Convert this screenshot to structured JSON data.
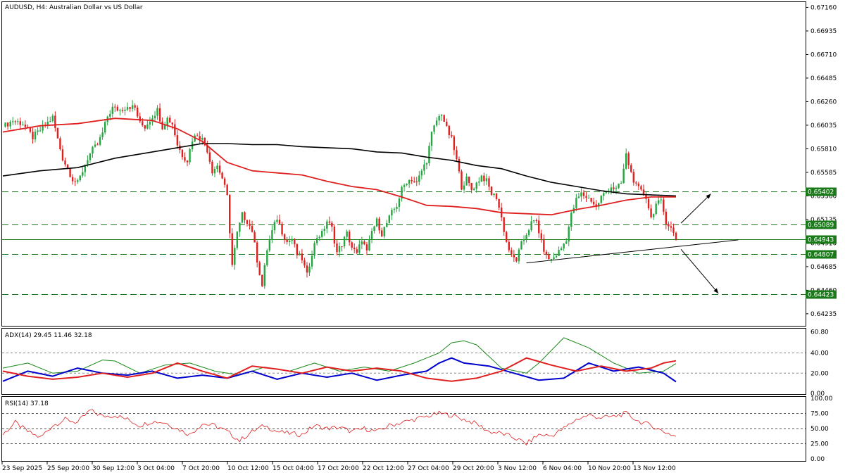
{
  "header": {
    "title": "AUDUSD, H4:  Australian Dollar vs US Dollar"
  },
  "colors": {
    "bull": "#26a641",
    "bear": "#e0201f",
    "ma_fast": "#e0201f",
    "ma_slow": "#000000",
    "level_line": "#1a7a1a",
    "adx_main": "#1a8a1a",
    "adx_plus": "#0000cc",
    "adx_minus": "#e0201f",
    "rsi": "#e0201f"
  },
  "price_axis": {
    "labels": [
      "0.67160",
      "0.66935",
      "0.66710",
      "0.66485",
      "0.66260",
      "0.66035",
      "0.65810",
      "0.65585",
      "0.65360",
      "0.65135",
      "0.64910",
      "0.64685",
      "0.64460",
      "0.64235"
    ]
  },
  "price_levels": [
    {
      "value": 0.65402,
      "label": "0.65402",
      "style": "dashed"
    },
    {
      "value": 0.65089,
      "label": "0.65089",
      "style": "dashed"
    },
    {
      "value": 0.64943,
      "label": "0.64943",
      "style": "solid"
    },
    {
      "value": 0.64807,
      "label": "0.64807",
      "style": "dashed"
    },
    {
      "value": 0.64423,
      "label": "0.64423",
      "style": "dashed"
    }
  ],
  "time_axis": {
    "labels": [
      "23 Sep 2025",
      "25 Sep 20:00",
      "30 Sep 12:00",
      "3 Oct 04:00",
      "7 Oct 20:00",
      "10 Oct 12:00",
      "15 Oct 04:00",
      "17 Oct 20:00",
      "22 Oct 12:00",
      "27 Oct 04:00",
      "29 Oct 20:00",
      "3 Nov 12:00",
      "6 Nov 04:00",
      "10 Nov 20:00",
      "13 Nov 12:00"
    ]
  },
  "adx_panel": {
    "label": "ADX(14) 29.45 11.46 32.18",
    "axis_labels": [
      "60.80",
      "40.00",
      "20.00",
      "0.00"
    ]
  },
  "rsi_panel": {
    "label": "RSI(14) 37.18",
    "axis_labels": [
      "100.00",
      "75.00",
      "50.00",
      "25.00",
      "0.00"
    ]
  },
  "chart_data": {
    "type": "candlestick",
    "symbol": "AUDUSD",
    "timeframe": "H4",
    "ylim": [
      0.6412,
      0.6721
    ],
    "anchors": [
      [
        0,
        0.6602
      ],
      [
        4,
        0.6608
      ],
      [
        8,
        0.6605
      ],
      [
        12,
        0.6592
      ],
      [
        16,
        0.6601
      ],
      [
        20,
        0.6611
      ],
      [
        22,
        0.659
      ],
      [
        24,
        0.6572
      ],
      [
        26,
        0.6562
      ],
      [
        28,
        0.6552
      ],
      [
        30,
        0.6548
      ],
      [
        32,
        0.656
      ],
      [
        34,
        0.6572
      ],
      [
        36,
        0.658
      ],
      [
        38,
        0.6585
      ],
      [
        40,
        0.6596
      ],
      [
        42,
        0.6612
      ],
      [
        44,
        0.662
      ],
      [
        47,
        0.6618
      ],
      [
        50,
        0.6622
      ],
      [
        53,
        0.662
      ],
      [
        55,
        0.6605
      ],
      [
        57,
        0.6602
      ],
      [
        60,
        0.6612
      ],
      [
        62,
        0.6618
      ],
      [
        64,
        0.6602
      ],
      [
        66,
        0.661
      ],
      [
        68,
        0.6605
      ],
      [
        70,
        0.6585
      ],
      [
        72,
        0.6575
      ],
      [
        74,
        0.657
      ],
      [
        76,
        0.659
      ],
      [
        78,
        0.6595
      ],
      [
        80,
        0.659
      ],
      [
        82,
        0.658
      ],
      [
        84,
        0.656
      ],
      [
        86,
        0.6565
      ],
      [
        88,
        0.6553
      ],
      [
        90,
        0.6535
      ],
      [
        92,
        0.647
      ],
      [
        94,
        0.65
      ],
      [
        96,
        0.6518
      ],
      [
        98,
        0.6512
      ],
      [
        100,
        0.6503
      ],
      [
        102,
        0.6475
      ],
      [
        104,
        0.645
      ],
      [
        106,
        0.6485
      ],
      [
        108,
        0.6502
      ],
      [
        110,
        0.6515
      ],
      [
        112,
        0.6502
      ],
      [
        114,
        0.6492
      ],
      [
        116,
        0.6495
      ],
      [
        118,
        0.648
      ],
      [
        120,
        0.6476
      ],
      [
        122,
        0.646
      ],
      [
        124,
        0.6482
      ],
      [
        126,
        0.6497
      ],
      [
        128,
        0.65
      ],
      [
        130,
        0.6512
      ],
      [
        132,
        0.6505
      ],
      [
        134,
        0.6482
      ],
      [
        136,
        0.649
      ],
      [
        138,
        0.65
      ],
      [
        140,
        0.6487
      ],
      [
        142,
        0.648
      ],
      [
        144,
        0.6495
      ],
      [
        146,
        0.6482
      ],
      [
        148,
        0.6502
      ],
      [
        150,
        0.6512
      ],
      [
        152,
        0.65
      ],
      [
        154,
        0.651
      ],
      [
        156,
        0.652
      ],
      [
        158,
        0.6527
      ],
      [
        160,
        0.6542
      ],
      [
        162,
        0.655
      ],
      [
        164,
        0.6552
      ],
      [
        166,
        0.6548
      ],
      [
        168,
        0.656
      ],
      [
        170,
        0.657
      ],
      [
        172,
        0.6595
      ],
      [
        174,
        0.6608
      ],
      [
        176,
        0.6615
      ],
      [
        178,
        0.66
      ],
      [
        180,
        0.659
      ],
      [
        182,
        0.657
      ],
      [
        184,
        0.6545
      ],
      [
        186,
        0.6552
      ],
      [
        188,
        0.6542
      ],
      [
        190,
        0.6548
      ],
      [
        192,
        0.6555
      ],
      [
        194,
        0.655
      ],
      [
        196,
        0.6538
      ],
      [
        198,
        0.6535
      ],
      [
        200,
        0.6515
      ],
      [
        202,
        0.6492
      ],
      [
        204,
        0.6478
      ],
      [
        206,
        0.6475
      ],
      [
        208,
        0.649
      ],
      [
        210,
        0.65
      ],
      [
        212,
        0.651
      ],
      [
        214,
        0.6512
      ],
      [
        216,
        0.6492
      ],
      [
        218,
        0.6478
      ],
      [
        220,
        0.6475
      ],
      [
        222,
        0.648
      ],
      [
        224,
        0.6486
      ],
      [
        226,
        0.6495
      ],
      [
        228,
        0.6518
      ],
      [
        230,
        0.6532
      ],
      [
        232,
        0.6538
      ],
      [
        234,
        0.6535
      ],
      [
        236,
        0.6532
      ],
      [
        238,
        0.6525
      ],
      [
        240,
        0.6535
      ],
      [
        242,
        0.654
      ],
      [
        244,
        0.6545
      ],
      [
        246,
        0.6542
      ],
      [
        248,
        0.6548
      ],
      [
        250,
        0.6575
      ],
      [
        252,
        0.6558
      ],
      [
        254,
        0.6545
      ],
      [
        256,
        0.654
      ],
      [
        258,
        0.6535
      ],
      [
        260,
        0.6515
      ],
      [
        262,
        0.6528
      ],
      [
        264,
        0.653
      ],
      [
        266,
        0.6512
      ],
      [
        268,
        0.6505
      ],
      [
        270,
        0.6495
      ]
    ],
    "ma_fast": [
      [
        0,
        0.6597
      ],
      [
        15,
        0.6603
      ],
      [
        30,
        0.6605
      ],
      [
        45,
        0.661
      ],
      [
        60,
        0.6608
      ],
      [
        70,
        0.66
      ],
      [
        80,
        0.6588
      ],
      [
        90,
        0.6568
      ],
      [
        100,
        0.656
      ],
      [
        110,
        0.6558
      ],
      [
        120,
        0.6556
      ],
      [
        130,
        0.655
      ],
      [
        140,
        0.6545
      ],
      [
        150,
        0.6542
      ],
      [
        160,
        0.6535
      ],
      [
        170,
        0.6527
      ],
      [
        180,
        0.6526
      ],
      [
        190,
        0.6524
      ],
      [
        200,
        0.652
      ],
      [
        210,
        0.6519
      ],
      [
        220,
        0.6518
      ],
      [
        230,
        0.6523
      ],
      [
        240,
        0.6527
      ],
      [
        250,
        0.6532
      ],
      [
        260,
        0.6535
      ],
      [
        270,
        0.6535
      ]
    ],
    "ma_slow": [
      [
        0,
        0.6555
      ],
      [
        15,
        0.656
      ],
      [
        30,
        0.6563
      ],
      [
        45,
        0.6572
      ],
      [
        60,
        0.6578
      ],
      [
        70,
        0.6582
      ],
      [
        80,
        0.6586
      ],
      [
        90,
        0.6586
      ],
      [
        100,
        0.6585
      ],
      [
        110,
        0.6585
      ],
      [
        120,
        0.6583
      ],
      [
        130,
        0.6582
      ],
      [
        140,
        0.6581
      ],
      [
        150,
        0.6578
      ],
      [
        160,
        0.6577
      ],
      [
        170,
        0.6573
      ],
      [
        180,
        0.657
      ],
      [
        190,
        0.6565
      ],
      [
        200,
        0.6562
      ],
      [
        210,
        0.6555
      ],
      [
        220,
        0.6549
      ],
      [
        230,
        0.6545
      ],
      [
        240,
        0.6541
      ],
      [
        250,
        0.6538
      ],
      [
        260,
        0.6537
      ],
      [
        270,
        0.6536
      ]
    ],
    "trendline": {
      "from": [
        210,
        0.6472
      ],
      "to": [
        295,
        0.6494
      ]
    },
    "arrows": [
      {
        "from": [
          272,
          0.651
        ],
        "to": [
          284,
          0.6538
        ]
      },
      {
        "from": [
          272,
          0.6485
        ],
        "to": [
          287,
          0.6443
        ]
      }
    ],
    "adx": {
      "ylim": [
        0,
        64
      ],
      "adx": [
        [
          0,
          25
        ],
        [
          10,
          30
        ],
        [
          20,
          20
        ],
        [
          30,
          22
        ],
        [
          40,
          33
        ],
        [
          45,
          32
        ],
        [
          55,
          20
        ],
        [
          65,
          28
        ],
        [
          75,
          30
        ],
        [
          85,
          22
        ],
        [
          95,
          18
        ],
        [
          105,
          26
        ],
        [
          115,
          22
        ],
        [
          125,
          30
        ],
        [
          135,
          22
        ],
        [
          145,
          26
        ],
        [
          155,
          22
        ],
        [
          165,
          30
        ],
        [
          175,
          40
        ],
        [
          180,
          50
        ],
        [
          185,
          52
        ],
        [
          190,
          48
        ],
        [
          200,
          25
        ],
        [
          210,
          20
        ],
        [
          215,
          30
        ],
        [
          225,
          55
        ],
        [
          235,
          45
        ],
        [
          245,
          30
        ],
        [
          255,
          20
        ],
        [
          265,
          22
        ],
        [
          270,
          29.45
        ]
      ],
      "plus": [
        [
          0,
          12
        ],
        [
          10,
          22
        ],
        [
          20,
          17
        ],
        [
          30,
          25
        ],
        [
          40,
          20
        ],
        [
          50,
          18
        ],
        [
          60,
          22
        ],
        [
          70,
          15
        ],
        [
          80,
          18
        ],
        [
          90,
          15
        ],
        [
          100,
          22
        ],
        [
          110,
          14
        ],
        [
          120,
          20
        ],
        [
          130,
          16
        ],
        [
          140,
          20
        ],
        [
          150,
          13
        ],
        [
          160,
          18
        ],
        [
          170,
          22
        ],
        [
          175,
          30
        ],
        [
          180,
          35
        ],
        [
          185,
          30
        ],
        [
          195,
          27
        ],
        [
          205,
          20
        ],
        [
          215,
          13
        ],
        [
          225,
          15
        ],
        [
          235,
          30
        ],
        [
          245,
          22
        ],
        [
          255,
          26
        ],
        [
          265,
          20
        ],
        [
          270,
          11.46
        ]
      ],
      "minus": [
        [
          0,
          22
        ],
        [
          10,
          17
        ],
        [
          20,
          14
        ],
        [
          30,
          16
        ],
        [
          40,
          20
        ],
        [
          50,
          16
        ],
        [
          60,
          20
        ],
        [
          70,
          30
        ],
        [
          80,
          22
        ],
        [
          90,
          15
        ],
        [
          100,
          27
        ],
        [
          110,
          24
        ],
        [
          120,
          20
        ],
        [
          130,
          26
        ],
        [
          140,
          22
        ],
        [
          150,
          25
        ],
        [
          160,
          22
        ],
        [
          170,
          15
        ],
        [
          180,
          12
        ],
        [
          190,
          15
        ],
        [
          200,
          22
        ],
        [
          210,
          35
        ],
        [
          220,
          28
        ],
        [
          230,
          22
        ],
        [
          240,
          27
        ],
        [
          250,
          22
        ],
        [
          260,
          25
        ],
        [
          265,
          30
        ],
        [
          270,
          32.18
        ]
      ]
    },
    "rsi": {
      "ylim": [
        0,
        100
      ],
      "series": [
        [
          0,
          40
        ],
        [
          5,
          60
        ],
        [
          10,
          45
        ],
        [
          15,
          35
        ],
        [
          20,
          55
        ],
        [
          25,
          65
        ],
        [
          30,
          60
        ],
        [
          35,
          80
        ],
        [
          40,
          70
        ],
        [
          45,
          72
        ],
        [
          50,
          65
        ],
        [
          55,
          55
        ],
        [
          60,
          62
        ],
        [
          65,
          60
        ],
        [
          70,
          50
        ],
        [
          75,
          40
        ],
        [
          80,
          58
        ],
        [
          85,
          55
        ],
        [
          90,
          45
        ],
        [
          95,
          30
        ],
        [
          100,
          45
        ],
        [
          105,
          55
        ],
        [
          110,
          45
        ],
        [
          115,
          42
        ],
        [
          120,
          40
        ],
        [
          125,
          55
        ],
        [
          130,
          50
        ],
        [
          135,
          52
        ],
        [
          140,
          45
        ],
        [
          145,
          50
        ],
        [
          150,
          45
        ],
        [
          155,
          55
        ],
        [
          160,
          60
        ],
        [
          165,
          65
        ],
        [
          170,
          70
        ],
        [
          175,
          75
        ],
        [
          180,
          72
        ],
        [
          185,
          65
        ],
        [
          190,
          58
        ],
        [
          195,
          45
        ],
        [
          200,
          42
        ],
        [
          205,
          35
        ],
        [
          210,
          25
        ],
        [
          215,
          40
        ],
        [
          220,
          38
        ],
        [
          225,
          50
        ],
        [
          230,
          65
        ],
        [
          235,
          72
        ],
        [
          240,
          68
        ],
        [
          245,
          70
        ],
        [
          250,
          75
        ],
        [
          255,
          62
        ],
        [
          260,
          55
        ],
        [
          265,
          45
        ],
        [
          270,
          37.18
        ]
      ]
    }
  }
}
